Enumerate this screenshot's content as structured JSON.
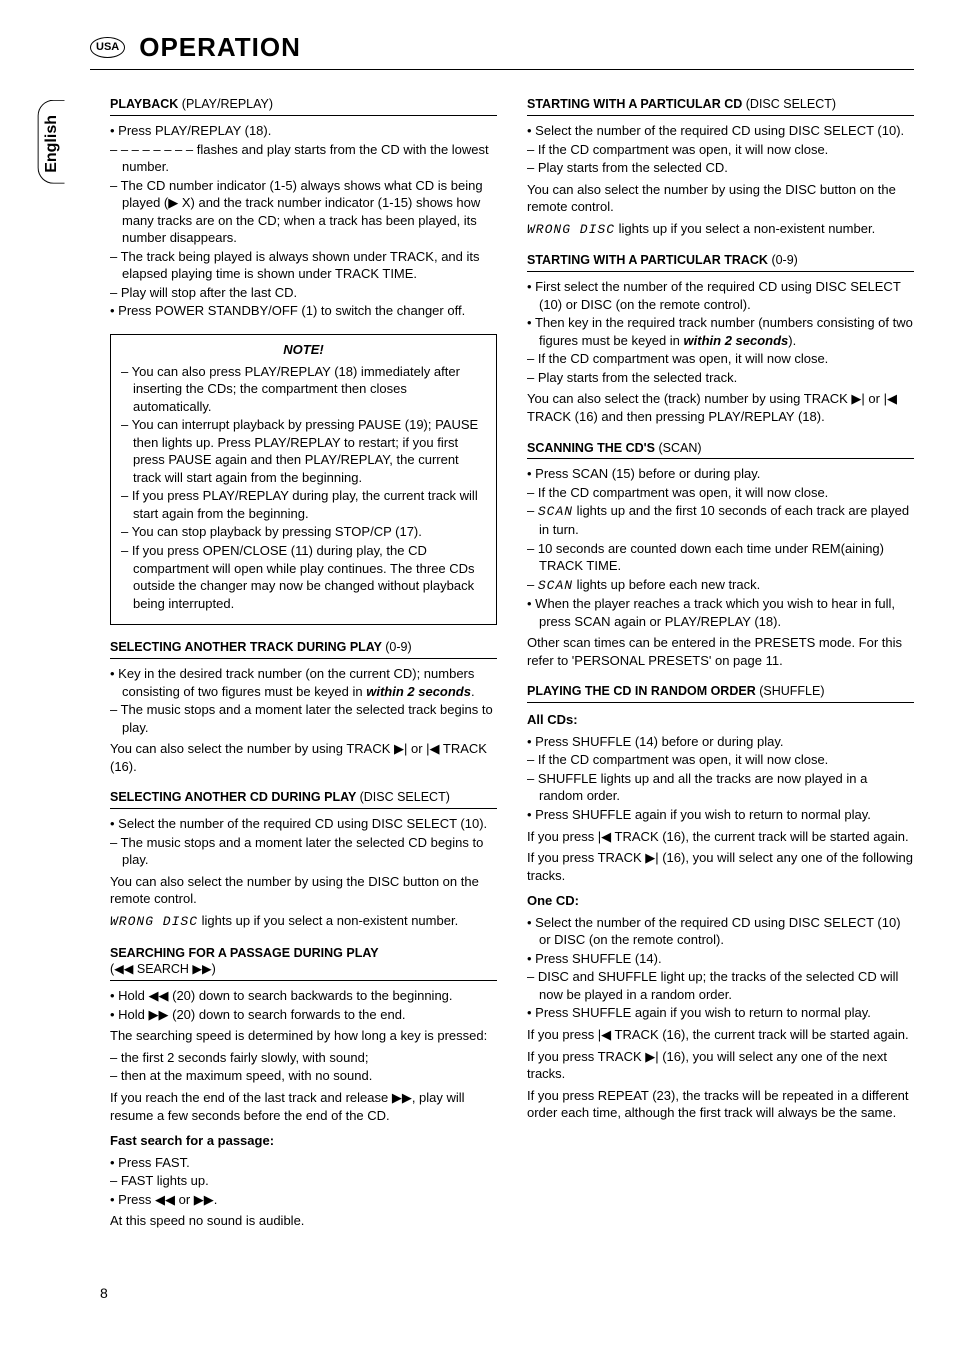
{
  "header": {
    "badge": "USA",
    "title": "OPERATION",
    "side_tab": "English"
  },
  "page_number": "8",
  "left": {
    "playback": {
      "title": "PLAYBACK",
      "paren": "(PLAY/REPLAY)",
      "items": [
        {
          "t": "bullet",
          "text": "Press PLAY/REPLAY (18)."
        },
        {
          "t": "dash",
          "text": "– – –  – –  – – flashes and play starts from the CD with the lowest number."
        },
        {
          "t": "dash",
          "text": "The CD number indicator (1-5) always shows what CD is being played (▶ X) and the track number indicator (1-15) shows how many tracks are on the CD; when a track has been played, its number disappears."
        },
        {
          "t": "dash",
          "text": "The track being played is always shown under TRACK, and its elapsed playing time is shown under TRACK TIME."
        },
        {
          "t": "dash",
          "text": "Play will stop after the last CD."
        },
        {
          "t": "bullet",
          "text": "Press POWER STANDBY/OFF (1) to switch the changer off."
        }
      ]
    },
    "note": {
      "title": "NOTE!",
      "items": [
        {
          "t": "dash",
          "text": "You can also press PLAY/REPLAY (18) immediately after inserting the CDs; the compartment then closes automatically."
        },
        {
          "t": "dash",
          "text": "You can interrupt playback by pressing PAUSE (19); PAUSE then lights up. Press PLAY/REPLAY to restart; if you first press PAUSE again and then PLAY/REPLAY, the current track will start again from the beginning."
        },
        {
          "t": "dash",
          "text": "If you press PLAY/REPLAY during play, the current track will start again from the beginning."
        },
        {
          "t": "dash",
          "text": "You can stop playback by pressing STOP/CP (17)."
        },
        {
          "t": "dash",
          "text": "If you press OPEN/CLOSE (11) during play, the CD compartment will open while play continues. The three CDs outside the changer may now be changed without playback being interrupted."
        }
      ]
    },
    "sel_track": {
      "title": "SELECTING ANOTHER TRACK DURING PLAY",
      "paren": "(0-9)",
      "items": [
        {
          "t": "bullet",
          "html": "Key in the desired track number (on the current CD); numbers consisting of two figures must be keyed in <span class='bolditalic'>within 2 seconds</span>."
        },
        {
          "t": "dash",
          "text": "The music stops and a moment later the selected track begins to play."
        }
      ],
      "after": "You can also select the number by using TRACK ▶| or |◀ TRACK (16)."
    },
    "sel_cd": {
      "title": "SELECTING ANOTHER CD DURING PLAY",
      "paren": "(DISC SELECT)",
      "items": [
        {
          "t": "bullet",
          "text": "Select the number of the required CD using DISC SELECT (10)."
        },
        {
          "t": "dash",
          "text": "The music stops and a moment later the selected CD begins to play."
        }
      ],
      "after1": "You can also select the number by using the DISC button on the remote control.",
      "after2": "WRONG DISC lights up if you select a non-existent number."
    },
    "search": {
      "title": "SEARCHING FOR A PASSAGE DURING PLAY",
      "paren": "(◀◀ SEARCH ▶▶)",
      "items": [
        {
          "t": "bullet",
          "text": "Hold ◀◀ (20) down to search backwards to the beginning."
        },
        {
          "t": "bullet",
          "text": "Hold ▶▶ (20) down to search forwards to the end."
        }
      ],
      "after": "The searching speed is determined by how long a key is pressed:",
      "items2": [
        {
          "t": "dash",
          "text": "the first 2 seconds fairly slowly, with sound;"
        },
        {
          "t": "dash",
          "text": "then at the maximum speed, with no sound."
        }
      ],
      "after2": "If you reach the end of the last track and release ▶▶, play will resume a few seconds before the end of the CD.",
      "fast_title": "Fast search for a passage:",
      "fast_items": [
        {
          "t": "bullet",
          "text": "Press FAST."
        },
        {
          "t": "dash",
          "text": "FAST lights up."
        },
        {
          "t": "bullet",
          "text": "Press ◀◀ or ▶▶."
        }
      ],
      "fast_after": "At this speed no sound is audible."
    }
  },
  "right": {
    "start_cd": {
      "title": "STARTING WITH A PARTICULAR CD",
      "paren": "(DISC SELECT)",
      "items": [
        {
          "t": "bullet",
          "text": "Select the number of the required CD using DISC SELECT (10)."
        },
        {
          "t": "dash",
          "text": "If the CD compartment was open, it will now close."
        },
        {
          "t": "dash",
          "text": "Play starts from the selected CD."
        }
      ],
      "after1": "You can also select the number by using the DISC button on the remote control.",
      "after2": "WRONG DISC lights up if you select a non-existent number."
    },
    "start_track": {
      "title": "STARTING WITH A PARTICULAR TRACK",
      "paren": "(0-9)",
      "items": [
        {
          "t": "bullet",
          "text": "First select the number of the required CD using DISC SELECT (10) or DISC (on the remote control)."
        },
        {
          "t": "bullet",
          "html": "Then key in the required track number (numbers consisting of two figures must be keyed in <span class='bolditalic'>within 2 seconds</span>)."
        },
        {
          "t": "dash",
          "text": "If the CD compartment was open, it will now close."
        },
        {
          "t": "dash",
          "text": "Play starts from the selected track."
        }
      ],
      "after": "You can also select the (track) number by using TRACK ▶| or |◀ TRACK (16) and then pressing PLAY/REPLAY (18)."
    },
    "scan": {
      "title": "SCANNING THE CD'S",
      "paren": "(SCAN)",
      "items": [
        {
          "t": "bullet",
          "text": "Press SCAN (15) before or during play."
        },
        {
          "t": "dash",
          "text": "If the CD compartment was open, it will now close."
        },
        {
          "t": "dash",
          "html": "<span class='lcd'>SCAN</span> lights up and the first 10 seconds of each track are played in turn."
        },
        {
          "t": "dash",
          "text": "10 seconds are counted down each time under REM(aining) TRACK TIME."
        },
        {
          "t": "dash",
          "html": "<span class='lcd'>SCAN</span> lights up before each new track."
        },
        {
          "t": "bullet",
          "text": "When the player reaches a track which you wish to hear in full, press SCAN again or PLAY/REPLAY (18)."
        }
      ],
      "after": "Other scan times can be entered in the PRESETS mode. For this refer to 'PERSONAL PRESETS' on page 11."
    },
    "shuffle": {
      "title": "PLAYING THE CD IN RANDOM ORDER",
      "paren": "(SHUFFLE)",
      "all_title": "All CDs:",
      "all_items": [
        {
          "t": "bullet",
          "text": "Press SHUFFLE (14) before or during play."
        },
        {
          "t": "dash",
          "text": "If the CD compartment was open, it will now close."
        },
        {
          "t": "dash",
          "text": "SHUFFLE lights up and all the tracks are now played in a random order."
        },
        {
          "t": "bullet",
          "text": "Press SHUFFLE again if you wish to return to normal play."
        }
      ],
      "all_after1": "If you press |◀ TRACK (16), the current track will be started again.",
      "all_after2": "If you press TRACK ▶| (16), you will select any one of the following tracks.",
      "one_title": "One CD:",
      "one_items": [
        {
          "t": "bullet",
          "text": "Select the number of the required CD using DISC SELECT (10) or DISC (on the remote control)."
        },
        {
          "t": "bullet",
          "text": "Press SHUFFLE (14)."
        },
        {
          "t": "dash",
          "text": "DISC and SHUFFLE light up; the tracks of the selected CD will now be played in a random order."
        },
        {
          "t": "bullet",
          "text": "Press SHUFFLE again if you wish to return to normal play."
        }
      ],
      "one_after1": "If you press |◀ TRACK (16), the current track will be started again.",
      "one_after2": "If you press TRACK ▶| (16), you will select any one of the next tracks.",
      "one_after3": "If you press REPEAT (23), the tracks will be repeated in a different order each time, although the first track will always be the same."
    }
  }
}
